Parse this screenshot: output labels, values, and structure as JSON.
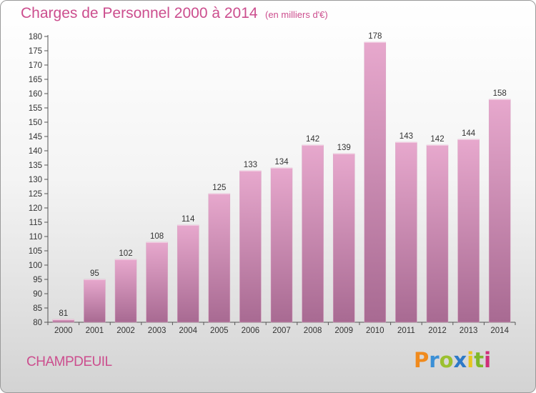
{
  "title": "Charges de Personnel 2000 à 2014",
  "subtitle": "(en milliers d'€)",
  "commune": "CHAMPDEUIL",
  "logo": {
    "letters": [
      "P",
      "r",
      "o",
      "x",
      "i",
      "t",
      "i"
    ],
    "colors": [
      "#f08a1d",
      "#3a8fd6",
      "#9bc02f",
      "#2d79c7",
      "#e8c51e",
      "#7fb829",
      "#cf2f79"
    ]
  },
  "colors": {
    "accent": "#cc4e8e",
    "bar_top": "#e7a8cd",
    "bar_bottom": "#a86a92"
  },
  "chart_data": {
    "type": "bar",
    "title": "Charges de Personnel 2000 à 2014",
    "subtitle": "(en milliers d'€)",
    "categories": [
      "2000",
      "2001",
      "2002",
      "2003",
      "2004",
      "2005",
      "2006",
      "2007",
      "2008",
      "2009",
      "2010",
      "2011",
      "2012",
      "2013",
      "2014"
    ],
    "values": [
      81,
      95,
      102,
      108,
      114,
      125,
      133,
      134,
      142,
      139,
      178,
      143,
      142,
      144,
      158
    ],
    "ylim": [
      80,
      180
    ],
    "ystep": 5,
    "grid": false,
    "legend": "none"
  }
}
